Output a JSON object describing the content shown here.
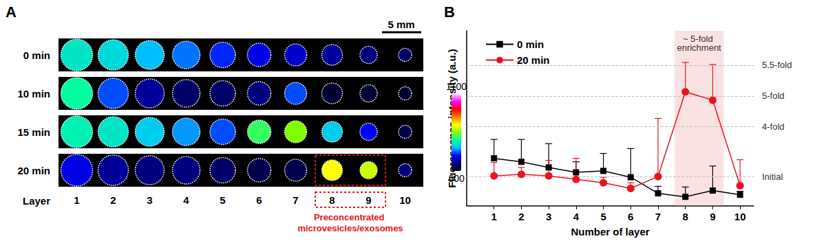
{
  "chart_data": [
    {
      "type": "heatmap",
      "title": "A",
      "x_label": "Layer",
      "categories": [
        "1",
        "2",
        "3",
        "4",
        "5",
        "6",
        "7",
        "8",
        "9",
        "10"
      ],
      "rows": [
        "0 min",
        "10 min",
        "15 min",
        "20 min"
      ],
      "cells": [
        [
          780,
          770,
          750,
          730,
          710,
          690,
          680,
          660,
          650,
          640
        ],
        [
          800,
          720,
          660,
          640,
          640,
          650,
          720,
          620,
          620,
          620
        ],
        [
          790,
          780,
          760,
          740,
          720,
          820,
          850,
          760,
          700,
          630
        ],
        [
          690,
          660,
          650,
          650,
          640,
          630,
          630,
          900,
          880,
          650
        ]
      ],
      "colorbar": {
        "range": [
          600,
          1100
        ],
        "ticks": [
          600,
          1100
        ]
      },
      "scale_bar": "5 mm",
      "annotation": {
        "text": "Preconcentrated microvesicles/exosomes",
        "categories": [
          "8",
          "9"
        ],
        "row": "20 min"
      }
    },
    {
      "type": "line",
      "title": "B",
      "x_label": "Number of layer",
      "y_label": "Fluorescence intensity (a.u.)",
      "x": [
        1,
        2,
        3,
        4,
        5,
        6,
        7,
        8,
        9,
        10
      ],
      "xlim": [
        0,
        10.5
      ],
      "xticks": [
        1,
        2,
        3,
        4,
        5,
        6,
        7,
        8,
        9,
        10
      ],
      "ylim": [
        0,
        25
      ],
      "yticks": [],
      "tick_labels": "x",
      "grid": false,
      "legend": "top-left",
      "series": [
        {
          "name": "0 min",
          "color": "#000000",
          "marker": "square",
          "values": [
            6.8,
            6.3,
            5.5,
            4.8,
            5.0,
            4.1,
            1.8,
            1.3,
            2.2,
            1.6
          ],
          "errors": [
            2.7,
            3.2,
            3.4,
            1.5,
            2.5,
            4.1,
            1.0,
            1.4,
            3.5,
            0.5
          ]
        },
        {
          "name": "20 min",
          "color": "#e8141c",
          "marker": "circle",
          "values": [
            4.3,
            4.5,
            4.3,
            3.8,
            3.3,
            2.5,
            4.2,
            16.3,
            15.1,
            2.9
          ],
          "errors": [
            1.9,
            1.0,
            2.2,
            3.0,
            0.8,
            0.8,
            8.3,
            4.2,
            5.1,
            3.7
          ]
        }
      ],
      "reference_lines": [
        {
          "value": 20.1,
          "label": "5.5-fold"
        },
        {
          "value": 15.7,
          "label": "5-fold"
        },
        {
          "value": 11.3,
          "label": "4-fold"
        },
        {
          "value": 4.2,
          "label": "Initial"
        }
      ],
      "band": {
        "x": [
          7.6,
          9.4
        ],
        "label": "~ 5-fold enrichment"
      }
    }
  ]
}
